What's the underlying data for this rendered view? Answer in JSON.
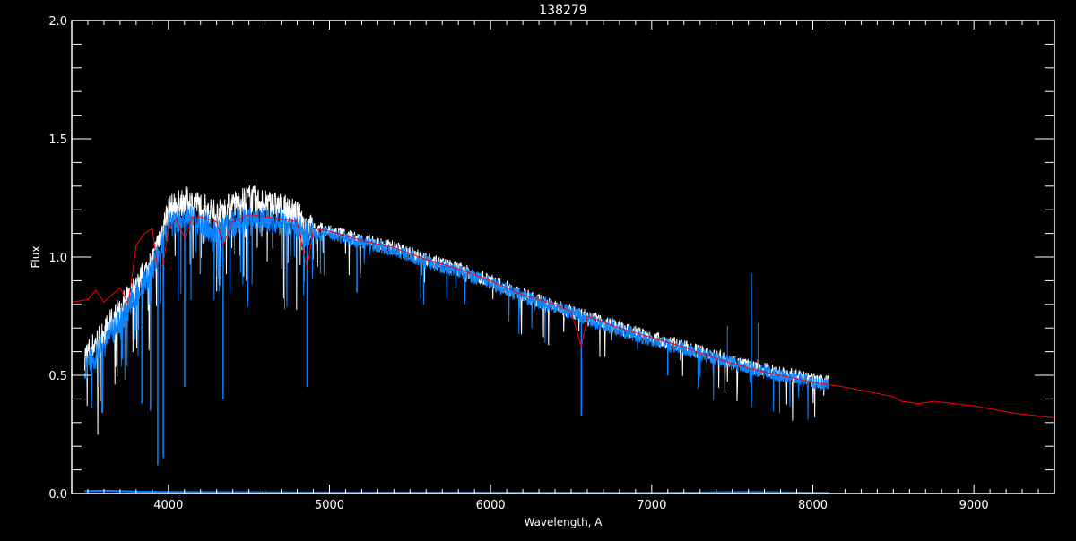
{
  "chart_data": {
    "type": "line",
    "title": "138279",
    "xlabel": "Wavelength, A",
    "ylabel": "Flux",
    "xlim": [
      3400,
      9500
    ],
    "ylim": [
      0.0,
      2.0
    ],
    "xticks": [
      4000,
      5000,
      6000,
      7000,
      8000,
      9000
    ],
    "xtick_labels": [
      "4000",
      "5000",
      "6000",
      "7000",
      "8000",
      "9000"
    ],
    "yticks": [
      0.0,
      0.5,
      1.0,
      1.5,
      2.0
    ],
    "ytick_labels": [
      "0.0",
      "0.5",
      "1.0",
      "1.5",
      "2.0"
    ],
    "grid": false,
    "background": "#000000",
    "series": [
      {
        "color": "#ffffff",
        "x": [
          3480,
          3600,
          3700,
          3800,
          3900,
          4000,
          4100,
          4200,
          4300,
          4400,
          4500,
          4600,
          4700,
          4800,
          4860,
          4900,
          5000,
          5200,
          5400,
          5600,
          5800,
          6000,
          6200,
          6400,
          6600,
          6800,
          7000,
          7200,
          7400,
          7600,
          7800,
          8000,
          8100
        ],
        "y": [
          0.58,
          0.68,
          0.78,
          0.88,
          0.98,
          1.2,
          1.24,
          1.22,
          1.18,
          1.22,
          1.25,
          1.23,
          1.21,
          1.18,
          1.13,
          1.12,
          1.11,
          1.07,
          1.04,
          0.99,
          0.95,
          0.9,
          0.84,
          0.79,
          0.75,
          0.7,
          0.66,
          0.62,
          0.58,
          0.54,
          0.51,
          0.48,
          0.47
        ]
      },
      {
        "color": "#0a84ff",
        "x": [
          3480,
          3600,
          3700,
          3800,
          3900,
          4000,
          4100,
          4200,
          4300,
          4400,
          4500,
          4600,
          4700,
          4800,
          4860,
          4900,
          5000,
          5200,
          5400,
          5600,
          5800,
          6000,
          6200,
          6400,
          6600,
          6800,
          7000,
          7200,
          7400,
          7600,
          7800,
          8000,
          8100
        ],
        "y": [
          0.53,
          0.63,
          0.73,
          0.84,
          0.94,
          1.13,
          1.16,
          1.15,
          1.1,
          1.14,
          1.17,
          1.16,
          1.15,
          1.13,
          1.1,
          1.1,
          1.1,
          1.06,
          1.03,
          0.98,
          0.94,
          0.89,
          0.83,
          0.79,
          0.74,
          0.69,
          0.65,
          0.61,
          0.57,
          0.53,
          0.5,
          0.47,
          0.46
        ],
        "absorption_lines": [
          [
            3934,
            0.12
          ],
          [
            3968,
            0.15
          ],
          [
            3835,
            0.38
          ],
          [
            3889,
            0.35
          ],
          [
            4101,
            0.45
          ],
          [
            4340,
            0.4
          ],
          [
            4861,
            0.45
          ],
          [
            5170,
            0.85
          ],
          [
            6563,
            0.33
          ],
          [
            7100,
            0.5
          ]
        ],
        "emission_spikes": [
          [
            7470,
            0.71
          ],
          [
            7620,
            0.93
          ],
          [
            7660,
            0.72
          ]
        ]
      },
      {
        "color": "#ff0000",
        "x": [
          3400,
          3500,
          3550,
          3600,
          3650,
          3700,
          3750,
          3800,
          3850,
          3900,
          3934,
          3968,
          4000,
          4050,
          4101,
          4150,
          4200,
          4300,
          4340,
          4400,
          4500,
          4600,
          4700,
          4800,
          4861,
          4900,
          5000,
          5200,
          5400,
          5600,
          5800,
          6000,
          6200,
          6400,
          6500,
          6563,
          6600,
          6800,
          7000,
          7200,
          7400,
          7600,
          7800,
          8000,
          8200,
          8500,
          8550,
          8660,
          8750,
          9000,
          9250,
          9500
        ],
        "y": [
          0.81,
          0.82,
          0.86,
          0.81,
          0.84,
          0.87,
          0.8,
          1.05,
          1.1,
          1.12,
          0.95,
          0.97,
          1.12,
          1.16,
          1.08,
          1.17,
          1.17,
          1.15,
          1.05,
          1.15,
          1.18,
          1.17,
          1.16,
          1.15,
          0.95,
          1.12,
          1.11,
          1.07,
          1.04,
          0.99,
          0.95,
          0.9,
          0.84,
          0.8,
          0.77,
          0.62,
          0.75,
          0.7,
          0.66,
          0.62,
          0.57,
          0.53,
          0.5,
          0.47,
          0.45,
          0.41,
          0.39,
          0.38,
          0.39,
          0.37,
          0.34,
          0.32
        ]
      },
      {
        "color": "#0a84ff",
        "x": [
          3480,
          3600,
          3800,
          4000,
          5000,
          6000,
          7000,
          7600,
          8100
        ],
        "y": [
          0.01,
          0.012,
          0.008,
          0.007,
          0.004,
          0.004,
          0.003,
          0.006,
          0.003
        ]
      }
    ]
  }
}
